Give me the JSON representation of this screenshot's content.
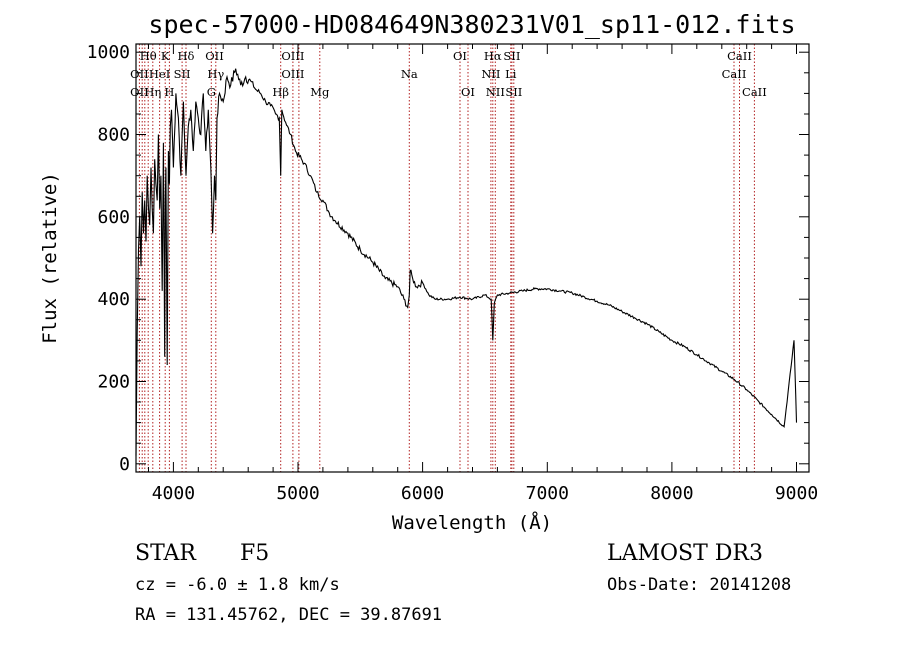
{
  "chart_data": {
    "type": "line",
    "title": "spec-57000-HD084649N380231V01_sp11-012.fits",
    "xlabel": "Wavelength (Å)",
    "ylabel": "Flux (relative)",
    "xlim": [
      3700,
      9100
    ],
    "ylim": [
      -20,
      1020
    ],
    "xticks": [
      4000,
      5000,
      6000,
      7000,
      8000,
      9000
    ],
    "yticks": [
      0,
      200,
      400,
      600,
      800,
      1000
    ],
    "xtick_labels": [
      "4000",
      "5000",
      "6000",
      "7000",
      "8000",
      "9000"
    ],
    "ytick_labels": [
      "0",
      "200",
      "400",
      "600",
      "800",
      "1000"
    ],
    "series": [
      {
        "name": "flux",
        "x": [
          3700,
          3710,
          3720,
          3730,
          3740,
          3750,
          3760,
          3770,
          3780,
          3790,
          3800,
          3810,
          3820,
          3830,
          3840,
          3850,
          3860,
          3870,
          3880,
          3890,
          3900,
          3910,
          3920,
          3930,
          3935,
          3940,
          3950,
          3960,
          3968,
          3975,
          3985,
          4000,
          4020,
          4040,
          4060,
          4080,
          4101,
          4120,
          4140,
          4160,
          4180,
          4200,
          4220,
          4240,
          4260,
          4280,
          4300,
          4315,
          4330,
          4340,
          4350,
          4370,
          4400,
          4430,
          4460,
          4500,
          4540,
          4580,
          4620,
          4660,
          4700,
          4740,
          4780,
          4820,
          4850,
          4861,
          4870,
          4900,
          4940,
          4980,
          5050,
          5100,
          5150,
          5200,
          5250,
          5300,
          5400,
          5500,
          5600,
          5700,
          5800,
          5850,
          5880,
          5893,
          5900,
          5920,
          5950,
          6000,
          6050,
          6100,
          6200,
          6300,
          6400,
          6500,
          6550,
          6563,
          6575,
          6600,
          6700,
          6800,
          6900,
          7000,
          7100,
          7200,
          7300,
          7400,
          7500,
          7600,
          7700,
          7800,
          7900,
          8000,
          8100,
          8200,
          8300,
          8400,
          8500,
          8600,
          8700,
          8800,
          8900,
          8980,
          9000
        ],
        "y": [
          20,
          320,
          520,
          600,
          480,
          660,
          560,
          640,
          540,
          700,
          620,
          580,
          720,
          620,
          560,
          740,
          680,
          640,
          800,
          620,
          700,
          420,
          780,
          260,
          640,
          720,
          240,
          760,
          680,
          820,
          860,
          720,
          900,
          840,
          700,
          880,
          700,
          820,
          860,
          760,
          880,
          840,
          800,
          900,
          760,
          860,
          720,
          560,
          700,
          640,
          840,
          900,
          880,
          940,
          920,
          960,
          920,
          940,
          930,
          910,
          900,
          880,
          870,
          850,
          840,
          700,
          860,
          830,
          800,
          760,
          730,
          700,
          660,
          640,
          610,
          590,
          560,
          520,
          490,
          450,
          430,
          400,
          380,
          410,
          470,
          450,
          430,
          440,
          410,
          400,
          400,
          405,
          400,
          410,
          400,
          300,
          390,
          410,
          415,
          420,
          425,
          425,
          420,
          415,
          405,
          395,
          385,
          370,
          355,
          340,
          320,
          300,
          285,
          265,
          245,
          225,
          205,
          180,
          150,
          120,
          90,
          300,
          100
        ]
      }
    ],
    "line_labels": [
      {
        "text": "Hθ",
        "x": 3798,
        "row": 1
      },
      {
        "text": "K",
        "x": 3934,
        "row": 1
      },
      {
        "text": "Hδ",
        "x": 4101,
        "row": 1
      },
      {
        "text": "OII",
        "x": 4330,
        "row": 1
      },
      {
        "text": "OIII",
        "x": 4959,
        "row": 1
      },
      {
        "text": "OI",
        "x": 6300,
        "row": 1
      },
      {
        "text": "Hα",
        "x": 6563,
        "row": 1
      },
      {
        "text": "SII",
        "x": 6716,
        "row": 1
      },
      {
        "text": "CaII",
        "x": 8542,
        "row": 1
      },
      {
        "text": "OII",
        "x": 3727,
        "row": 2
      },
      {
        "text": "HeI",
        "x": 3889,
        "row": 2
      },
      {
        "text": "SII",
        "x": 4070,
        "row": 2
      },
      {
        "text": "Hγ",
        "x": 4340,
        "row": 2
      },
      {
        "text": "OIII",
        "x": 4959,
        "row": 2
      },
      {
        "text": "Na",
        "x": 5893,
        "row": 2
      },
      {
        "text": "NII",
        "x": 6548,
        "row": 2
      },
      {
        "text": "Li",
        "x": 6707,
        "row": 2
      },
      {
        "text": "CaII",
        "x": 8498,
        "row": 2
      },
      {
        "text": "OII",
        "x": 3727,
        "row": 3
      },
      {
        "text": "Hη",
        "x": 3835,
        "row": 3
      },
      {
        "text": "H",
        "x": 3968,
        "row": 3
      },
      {
        "text": "G",
        "x": 4304,
        "row": 3
      },
      {
        "text": "Hβ",
        "x": 4861,
        "row": 3
      },
      {
        "text": "Mg",
        "x": 5175,
        "row": 3
      },
      {
        "text": "OI",
        "x": 6364,
        "row": 3
      },
      {
        "text": "NII",
        "x": 6583,
        "row": 3
      },
      {
        "text": "SII",
        "x": 6731,
        "row": 3
      },
      {
        "text": "CaII",
        "x": 8662,
        "row": 3
      }
    ],
    "line_markers": [
      3727,
      3750,
      3771,
      3798,
      3835,
      3889,
      3934,
      3968,
      4070,
      4101,
      4304,
      4340,
      4861,
      4959,
      5007,
      5175,
      5893,
      6300,
      6364,
      6548,
      6563,
      6583,
      6707,
      6716,
      6731,
      8498,
      8542,
      8662
    ]
  },
  "info": {
    "object_class": "STAR",
    "subclass": "F5",
    "survey": "LAMOST DR3",
    "cz": "cz = -6.0 ± 1.8 km/s",
    "obs_date": "Obs-Date: 20141208",
    "coords": "RA = 131.45762, DEC =  39.87691"
  }
}
